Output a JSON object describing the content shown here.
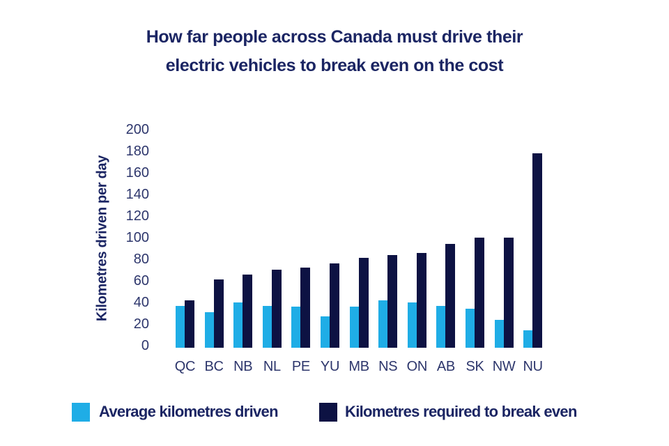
{
  "title_lines": [
    "How far people across Canada must drive their",
    "electric vehicles to break even on the cost"
  ],
  "colors": {
    "light_blue": "#1fade6",
    "navy": "#0d1243",
    "heading_text": "#1b2563",
    "axis_text": "#2d366c",
    "background": "#ffffff"
  },
  "legend": {
    "items": [
      {
        "label": "Average kilometres driven"
      },
      {
        "label": "Kilometres required to break even"
      }
    ]
  },
  "chart_data": {
    "type": "bar",
    "title": "How far people across Canada must drive their electric vehicles to break even on the cost",
    "categories": [
      "QC",
      "BC",
      "NB",
      "NL",
      "PE",
      "YU",
      "MB",
      "NS",
      "ON",
      "AB",
      "SK",
      "NW",
      "NU"
    ],
    "series": [
      {
        "name": "Average kilometres driven",
        "color": "#1fade6",
        "values": [
          39,
          33,
          42,
          39,
          38,
          29,
          38,
          44,
          42,
          39,
          36,
          26,
          16
        ]
      },
      {
        "name": "Kilometres required to break even",
        "color": "#0d1243",
        "values": [
          44,
          63,
          68,
          72,
          74,
          78,
          83,
          86,
          88,
          96,
          102,
          102,
          180
        ]
      }
    ],
    "xlabel": "",
    "ylabel": "Kilometres driven per day",
    "ylim": [
      0,
      200
    ],
    "yticks": [
      0,
      20,
      40,
      60,
      80,
      100,
      120,
      140,
      160,
      180,
      200
    ],
    "grid": false,
    "legend_position": "bottom"
  }
}
